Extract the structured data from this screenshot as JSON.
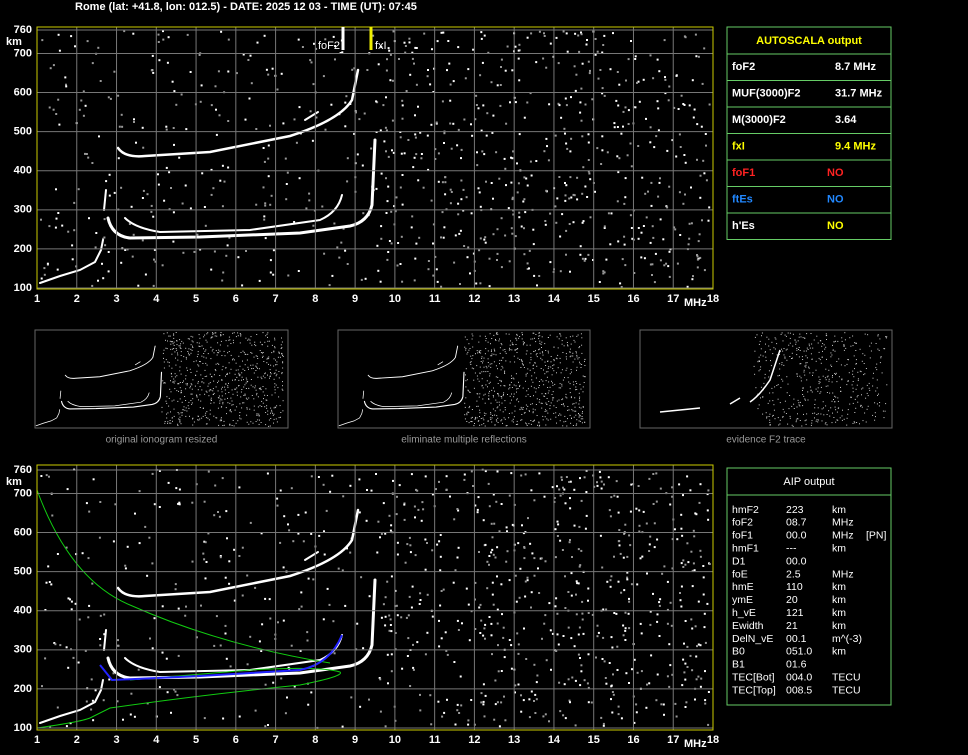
{
  "header": {
    "title": "Rome (lat: +41.8, lon: 012.5) - DATE: 2025 12 03 - TIME (UT): 07:45"
  },
  "ionograms": {
    "y_unit": "km",
    "x_unit": "MHz",
    "yticks": [
      100,
      200,
      300,
      400,
      500,
      600,
      700,
      760
    ],
    "xticks": [
      1,
      2,
      3,
      4,
      5,
      6,
      7,
      8,
      9,
      10,
      11,
      12,
      13,
      14,
      15,
      16,
      17,
      18
    ],
    "markers": [
      "foF2",
      "fxI"
    ]
  },
  "autoscala": {
    "title": "AUTOSCALA output",
    "rows": [
      [
        "foF2",
        "8.7 MHz"
      ],
      [
        "MUF(3000)F2",
        "31.7 MHz"
      ],
      [
        "M(3000)F2",
        "3.64"
      ],
      [
        "fxI",
        "9.4 MHz"
      ],
      [
        "foF1",
        "NO"
      ],
      [
        "ftEs",
        "NO"
      ],
      [
        "h'Es",
        "NO"
      ]
    ]
  },
  "thumbnails": {
    "captions": [
      "original ionogram resized",
      "eliminate multiple reflections",
      "evidence F2 trace"
    ]
  },
  "aip": {
    "title": "AIP output",
    "rows": [
      [
        "hmF2",
        "223",
        "km",
        ""
      ],
      [
        "foF2",
        "08.7",
        "MHz",
        ""
      ],
      [
        "foF1",
        "00.0",
        "MHz",
        "[PN]"
      ],
      [
        "hmF1",
        "---",
        "km",
        ""
      ],
      [
        "D1",
        "00.0",
        "",
        ""
      ],
      [
        "foE",
        "2.5",
        "MHz",
        ""
      ],
      [
        "hmE",
        "110",
        "km",
        ""
      ],
      [
        "ymE",
        "20",
        "km",
        ""
      ],
      [
        "h_vE",
        "121",
        "km",
        ""
      ],
      [
        "Ewidth",
        "21",
        "km",
        ""
      ],
      [
        "DelN_vE",
        "00.1",
        "m^(-3)",
        ""
      ],
      [
        "B0",
        "051.0",
        "km",
        ""
      ],
      [
        "B1",
        "01.6",
        "",
        ""
      ],
      [
        "TEC[Bot]",
        "004.0",
        "TECU",
        ""
      ],
      [
        "TEC[Top]",
        "008.5",
        "TECU",
        ""
      ]
    ]
  }
}
